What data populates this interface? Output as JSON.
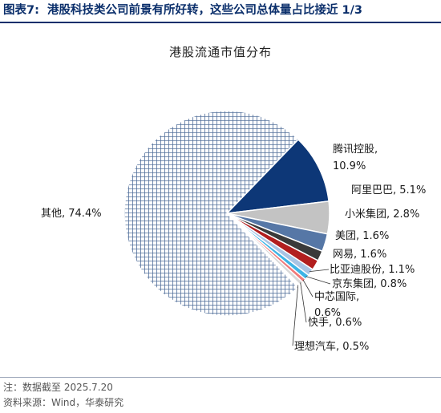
{
  "figure": {
    "label": "图表7:",
    "title": "港股科技类公司前景有所好转，这些公司总体量占比接近 1/3"
  },
  "chart_data": {
    "type": "pie",
    "title": "港股流通市值分布",
    "unit": "%",
    "slices": [
      {
        "label": "腾讯控股,",
        "label2": "10.9%",
        "value": 10.9,
        "color": "#0d3777",
        "pattern": "solid"
      },
      {
        "label": "阿里巴巴, 5.1%",
        "value": 5.1,
        "color": "#c3c3c3",
        "pattern": "solid"
      },
      {
        "label": "小米集团, 2.8%",
        "value": 2.8,
        "color": "#5677a6",
        "pattern": "solid"
      },
      {
        "label": "美团, 1.6%",
        "value": 1.6,
        "color": "#3a3a3a",
        "pattern": "solid"
      },
      {
        "label": "网易, 1.6%",
        "value": 1.6,
        "color": "#b21e1e",
        "pattern": "solid"
      },
      {
        "label": "比亚迪股份, 1.1%",
        "value": 1.1,
        "color": "#a9c4e4",
        "pattern": "solid"
      },
      {
        "label": "京东集团, 0.8%",
        "value": 0.8,
        "color": "#3db4e6",
        "pattern": "solid"
      },
      {
        "label": "中芯国际,",
        "label2": "0.6%",
        "value": 0.6,
        "color": "#f07a7a",
        "pattern": "solid"
      },
      {
        "label": "快手, 0.6%",
        "value": 0.6,
        "color": "#d8d8d8",
        "pattern": "solid"
      },
      {
        "label": "理想汽车, 0.5%",
        "value": 0.5,
        "color": "#ffffff",
        "pattern": "solid"
      },
      {
        "label": "其他, 74.4%",
        "value": 74.4,
        "color": "#4f6d99",
        "pattern": "grid"
      }
    ]
  },
  "footer": {
    "note": "注：数据截至 2025.7.20",
    "source": "资料来源：Wind，华泰研究"
  }
}
